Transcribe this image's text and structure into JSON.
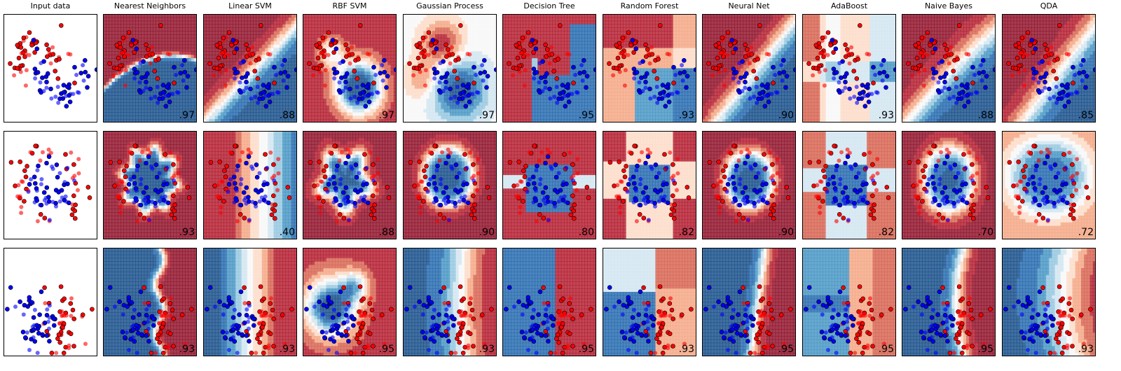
{
  "column_titles": [
    "Input data",
    "Nearest Neighbors",
    "Linear SVM",
    "RBF SVM",
    "Gaussian Process",
    "Decision Tree",
    "Random Forest",
    "Neural Net",
    "AdaBoost",
    "Naive Bayes",
    "QDA"
  ],
  "datasets": [
    "moons",
    "circles",
    "linear"
  ],
  "scores": [
    [
      ".97",
      ".88",
      ".97",
      ".97",
      ".95",
      ".93",
      ".90",
      ".93",
      ".88",
      ".85"
    ],
    [
      ".93",
      ".40",
      ".88",
      ".90",
      ".80",
      ".82",
      ".90",
      ".82",
      ".70",
      ".72"
    ],
    [
      ".93",
      ".93",
      ".95",
      ".93",
      ".95",
      ".93",
      ".95",
      ".95",
      ".95",
      ".93"
    ]
  ],
  "colors": {
    "class0": "#ff0000",
    "class1": "#0000ff",
    "rdbu": [
      "#67001f",
      "#b2182b",
      "#d6604d",
      "#f4a582",
      "#fddbc7",
      "#f7f7f7",
      "#d1e5f0",
      "#92c5de",
      "#4393c3",
      "#2166ac",
      "#053061"
    ]
  },
  "chart_data": {
    "type": "scatter",
    "title": "",
    "subplots": "3 rows (datasets) x 11 columns (Input data + 10 classifiers)",
    "decision_surface": "filled contour, RdBu colormap, alpha 0.8",
    "points": "training points opaque with black edge, test points semi-transparent",
    "axes": "no ticks",
    "series": [
      {
        "name": "",
        "dataset": "moons",
        "shape": "two interleaving half circles",
        "n_points": 100
      },
      {
        "name": "",
        "dataset": "circles",
        "shape": "inner circle (blue) inside outer ring (red)",
        "n_points": 100
      },
      {
        "name": "",
        "dataset": "linear",
        "shape": "two linearly separable blobs, blue left / red right",
        "n_points": 100
      }
    ]
  }
}
